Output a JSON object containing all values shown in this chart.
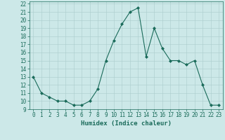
{
  "x": [
    0,
    1,
    2,
    3,
    4,
    5,
    6,
    7,
    8,
    9,
    10,
    11,
    12,
    13,
    14,
    15,
    16,
    17,
    18,
    19,
    20,
    21,
    22,
    23
  ],
  "y": [
    13,
    11,
    10.5,
    10,
    10,
    9.5,
    9.5,
    10,
    11.5,
    15,
    17.5,
    19.5,
    21,
    21.5,
    15.5,
    19,
    16.5,
    15,
    15,
    14.5,
    15,
    12,
    9.5,
    9.5
  ],
  "line_color": "#1a6b5a",
  "marker": "D",
  "marker_size": 2,
  "bg_color": "#cce8e8",
  "grid_color": "#aacccc",
  "xlabel": "Humidex (Indice chaleur)",
  "xlim": [
    -0.5,
    23.5
  ],
  "ylim": [
    9,
    22.3
  ],
  "yticks": [
    9,
    10,
    11,
    12,
    13,
    14,
    15,
    16,
    17,
    18,
    19,
    20,
    21,
    22
  ],
  "xticks": [
    0,
    1,
    2,
    3,
    4,
    5,
    6,
    7,
    8,
    9,
    10,
    11,
    12,
    13,
    14,
    15,
    16,
    17,
    18,
    19,
    20,
    21,
    22,
    23
  ],
  "tick_color": "#1a6b5a",
  "label_color": "#1a6b5a",
  "xlabel_fontsize": 6.5,
  "tick_fontsize": 5.5
}
